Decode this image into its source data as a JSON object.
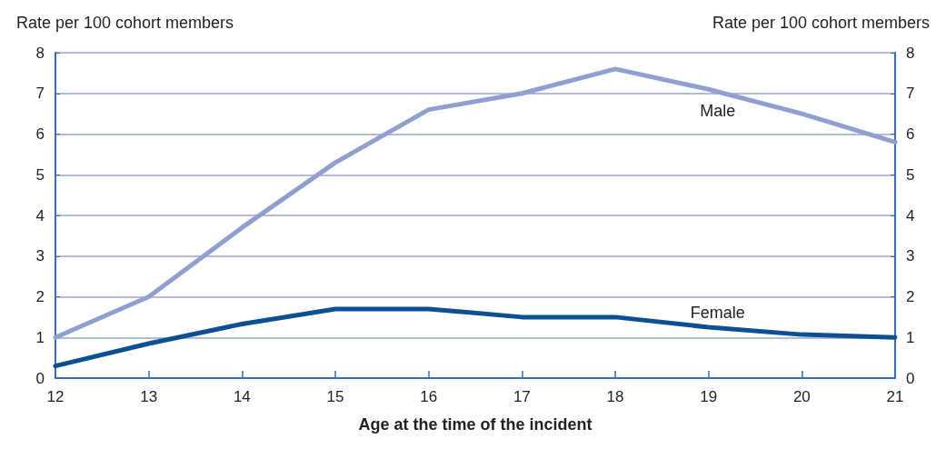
{
  "chart_data": {
    "type": "line",
    "xlabel": "Age at the time of the incident",
    "ylabel": "Rate per 100 cohort members",
    "y2label": "Rate per 100 cohort members",
    "x": [
      12,
      13,
      14,
      15,
      16,
      17,
      18,
      19,
      20,
      21
    ],
    "series": [
      {
        "name": "Male",
        "color": "#8f9fd0",
        "values": [
          1.0,
          2.0,
          3.7,
          5.3,
          6.6,
          7.0,
          7.6,
          7.1,
          6.5,
          5.8
        ]
      },
      {
        "name": "Female",
        "color": "#0b4f95",
        "values": [
          0.3,
          0.85,
          1.33,
          1.7,
          1.7,
          1.5,
          1.5,
          1.25,
          1.07,
          1.0
        ]
      }
    ],
    "xlim": [
      12,
      21
    ],
    "xticks": [
      12,
      13,
      14,
      15,
      16,
      17,
      18,
      19,
      20,
      21
    ],
    "ylim": [
      0,
      8
    ],
    "yticks": [
      0,
      1,
      2,
      3,
      4,
      5,
      6,
      7,
      8
    ],
    "y2lim": [
      0,
      8
    ],
    "y2ticks": [
      0,
      1,
      2,
      3,
      4,
      5,
      6,
      7,
      8
    ],
    "grid": "y",
    "legend": false,
    "marker": "none",
    "line_style": "solid"
  }
}
